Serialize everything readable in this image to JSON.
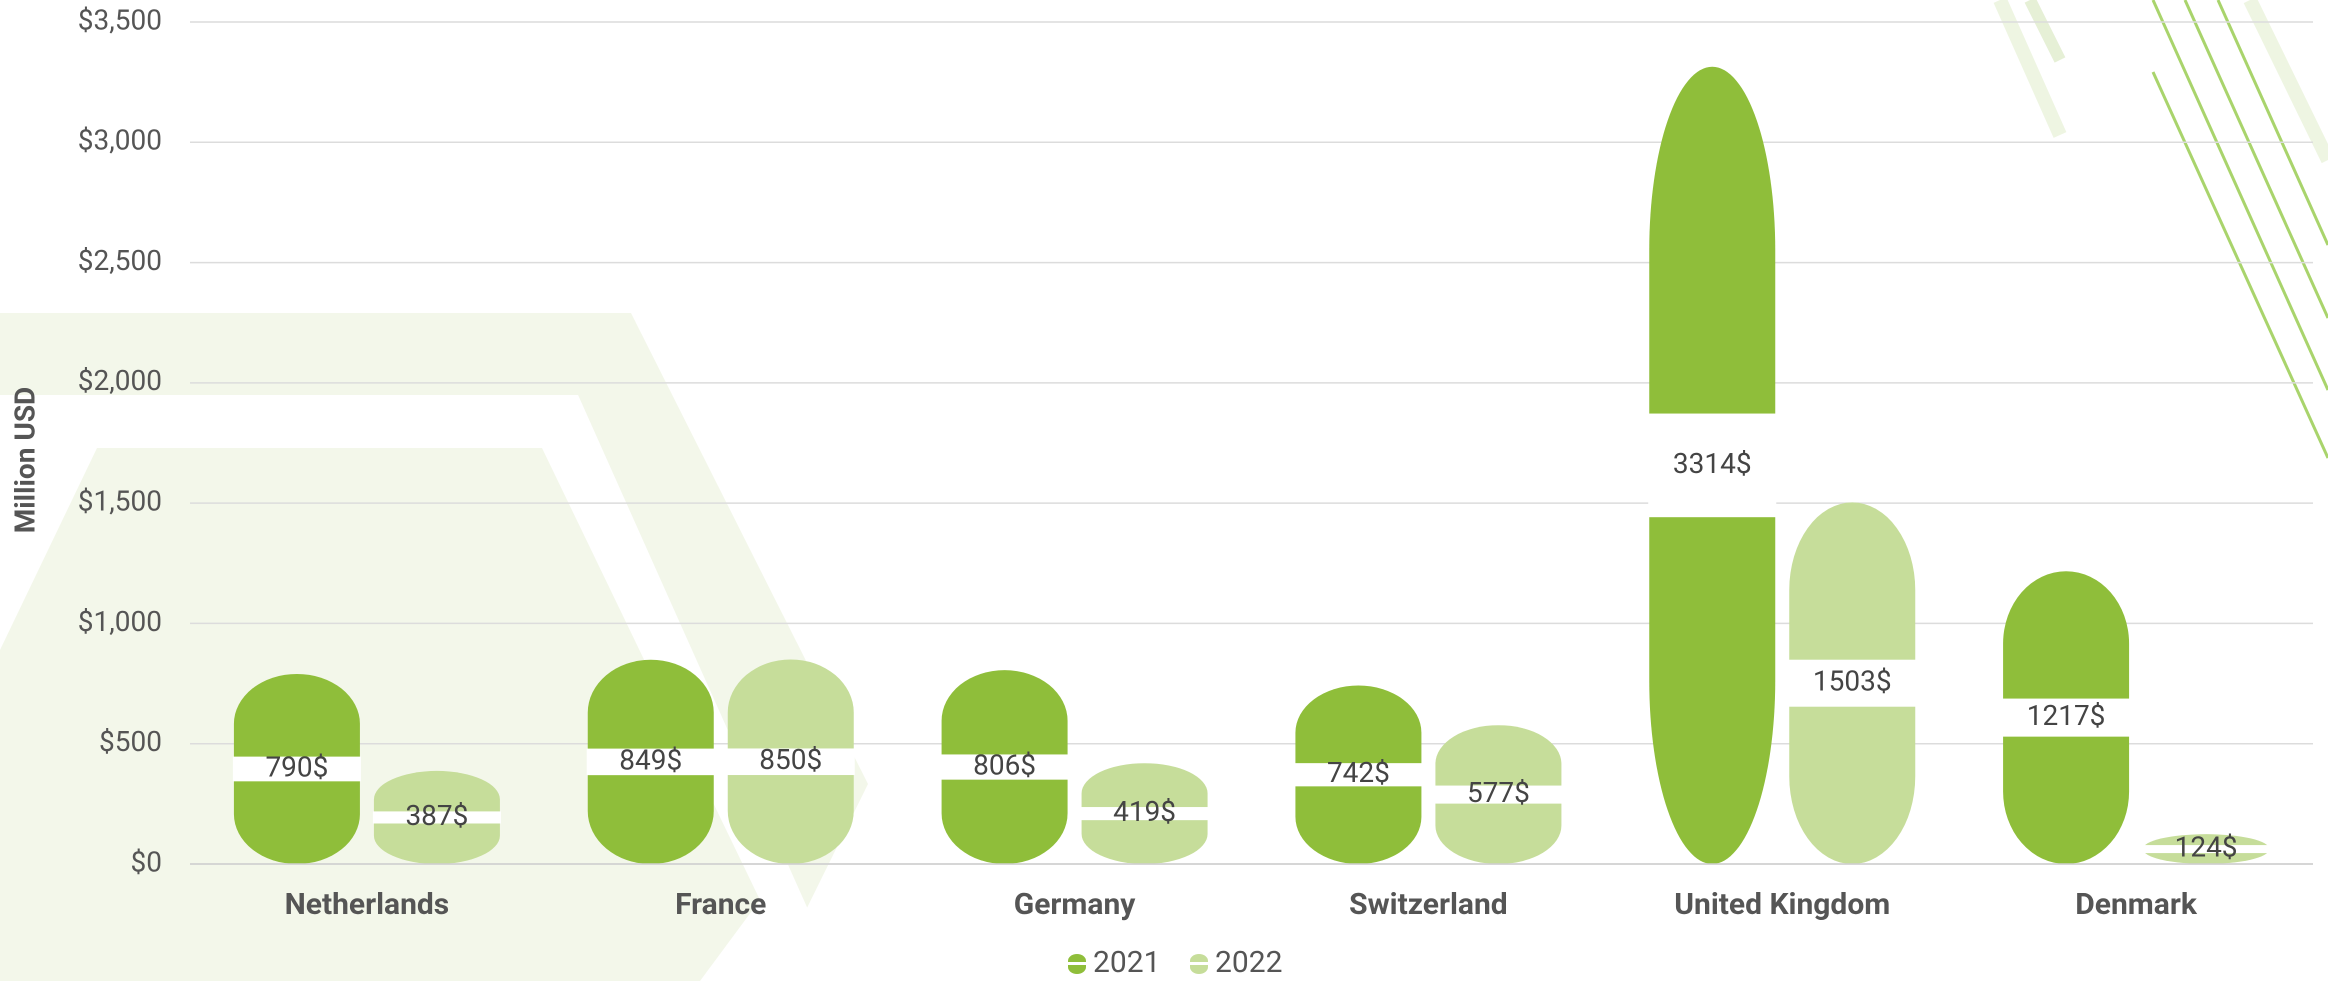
{
  "chart_data": {
    "type": "bar",
    "y_label": "Million USD",
    "categories": [
      "Netherlands",
      "France",
      "Germany",
      "Switzerland",
      "United Kingdom",
      "Denmark"
    ],
    "series": [
      {
        "name": "2021",
        "color": "#8fbe3a",
        "values": [
          790,
          849,
          806,
          742,
          3314,
          1217
        ],
        "value_labels": [
          "790$",
          "849$",
          "806$",
          "742$",
          "3314$",
          "1217$"
        ]
      },
      {
        "name": "2022",
        "color": "#c6dd9a",
        "values": [
          387,
          850,
          419,
          577,
          1503,
          124
        ],
        "value_labels": [
          "387$",
          "850$",
          "419$",
          "577$",
          "1503$",
          "124$"
        ]
      }
    ],
    "ylim": [
      0,
      3500
    ],
    "yticks": [
      {
        "value": 0,
        "label": "$0"
      },
      {
        "value": 500,
        "label": "$500"
      },
      {
        "value": 1000,
        "label": "$1,000"
      },
      {
        "value": 1500,
        "label": "$1,500"
      },
      {
        "value": 2000,
        "label": "$2,000"
      },
      {
        "value": 2500,
        "label": "$2,500"
      },
      {
        "value": 3000,
        "label": "$3,000"
      },
      {
        "value": 3500,
        "label": "$3,500"
      }
    ],
    "grid": true
  }
}
